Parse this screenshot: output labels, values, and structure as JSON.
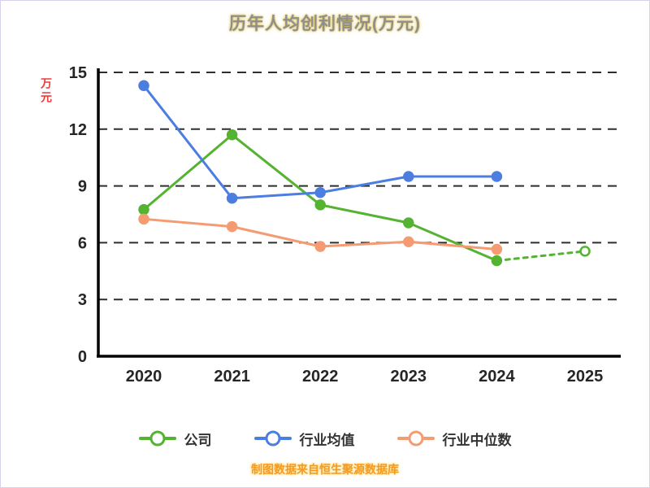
{
  "title": "历年人均创利情况(万元)",
  "y_axis_label": "万元",
  "footer": "制图数据来自恒生聚源数据库",
  "chart_data": {
    "type": "line",
    "title": "历年人均创利情况(万元)",
    "x": [
      "2020",
      "2021",
      "2022",
      "2023",
      "2024",
      "2025"
    ],
    "ylabel": "万元",
    "ylim": [
      0,
      15
    ],
    "yticks": [
      0,
      3,
      6,
      9,
      12,
      15
    ],
    "grid": "dashed-horizontal",
    "legend_position": "bottom",
    "series": [
      {
        "name": "公司",
        "color": "#54b330",
        "values": [
          7.75,
          11.7,
          8.0,
          7.05,
          5.05,
          5.55
        ],
        "dashed_from": 4,
        "hollow_points": [
          5
        ]
      },
      {
        "name": "行业均值",
        "color": "#4c7de0",
        "values": [
          14.3,
          8.35,
          8.65,
          9.5,
          9.5,
          null
        ]
      },
      {
        "name": "行业中位数",
        "color": "#f59b72",
        "values": [
          7.25,
          6.85,
          5.8,
          6.05,
          5.65,
          null
        ]
      }
    ]
  }
}
